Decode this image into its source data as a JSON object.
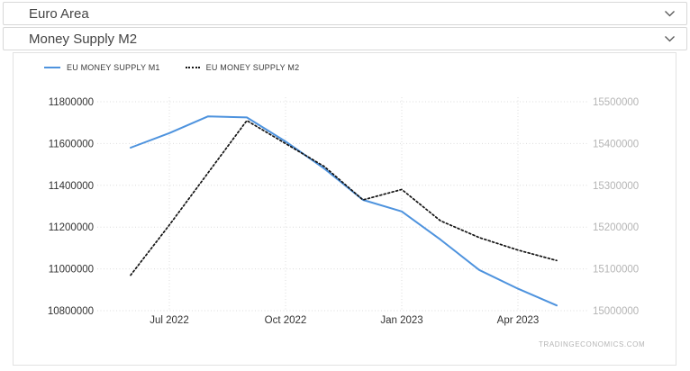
{
  "header": {
    "country_select": {
      "value": "Euro Area"
    },
    "indicator_select": {
      "value": "Money Supply M2"
    }
  },
  "watermark": "TRADINGECONOMICS.COM",
  "colors": {
    "m1_line": "#4e93de",
    "m2_line": "#141414",
    "grid": "#dcdcdc",
    "left_axis_text": "#333333",
    "right_axis_text": "#b5b5b5",
    "x_axis_text": "#333333",
    "watermark_text": "#b5b5b5"
  },
  "chart_data": {
    "type": "line",
    "title": "",
    "xlabel": "",
    "ylabel": "",
    "grid": "dotted",
    "legend_position": "top-left",
    "x": [
      "Jun 2022",
      "Jul 2022",
      "Aug 2022",
      "Sep 2022",
      "Oct 2022",
      "Nov 2022",
      "Dec 2022",
      "Jan 2023",
      "Feb 2023",
      "Mar 2023",
      "Apr 2023",
      "May 2023"
    ],
    "x_ticks": [
      {
        "index": 1,
        "label": "Jul 2022"
      },
      {
        "index": 4,
        "label": "Oct 2022"
      },
      {
        "index": 7,
        "label": "Jan 2023"
      },
      {
        "index": 10,
        "label": "Apr 2023"
      }
    ],
    "left_axis": {
      "min": 10800000,
      "max": 11800000,
      "ticks": [
        11800000,
        11600000,
        11400000,
        11200000,
        11000000,
        10800000
      ],
      "color": "#333333"
    },
    "right_axis": {
      "min": 15000000,
      "max": 15500000,
      "ticks": [
        15500000,
        15400000,
        15300000,
        15200000,
        15100000,
        15000000
      ],
      "color": "#b5b5b5"
    },
    "series": [
      {
        "name": "EU MONEY SUPPLY M1",
        "axis": "left",
        "style": "solid",
        "color": "#4e93de",
        "values": [
          11580000,
          11650000,
          11730000,
          11725000,
          11610000,
          11480000,
          11330000,
          11275000,
          11140000,
          10995000,
          10905000,
          10825000
        ]
      },
      {
        "name": "EU MONEY SUPPLY M2",
        "axis": "right",
        "style": "dotted",
        "color": "#141414",
        "values": [
          15085000,
          15205000,
          15330000,
          15455000,
          15400000,
          15345000,
          15265000,
          15290000,
          15215000,
          15175000,
          15145000,
          15120000
        ]
      }
    ]
  }
}
